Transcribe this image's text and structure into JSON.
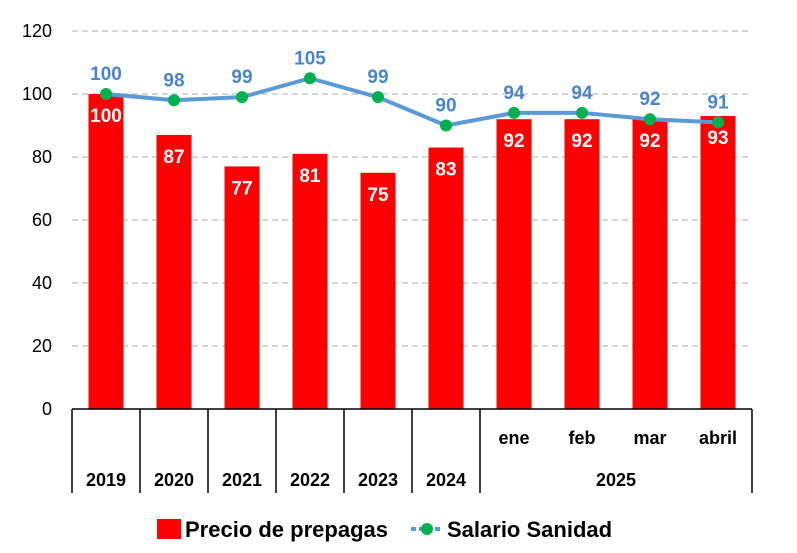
{
  "chart_data": {
    "type": "bar",
    "categories": [
      "2019",
      "2020",
      "2021",
      "2022",
      "2023",
      "2024",
      "ene",
      "feb",
      "mar",
      "abril"
    ],
    "group_labels": [
      "2019",
      "2020",
      "2021",
      "2022",
      "2023",
      "2024",
      "2025"
    ],
    "yticks": [
      "0",
      "20",
      "40",
      "60",
      "80",
      "100",
      "120"
    ],
    "ylim": [
      0,
      120
    ],
    "grid": true,
    "legend_position": "bottom",
    "series": [
      {
        "name": "Precio de prepagas",
        "type": "bar",
        "color": "#ff0000",
        "values": [
          100,
          87,
          77,
          81,
          75,
          83,
          92,
          92,
          92,
          93
        ],
        "labels": [
          "100",
          "87",
          "77",
          "81",
          "75",
          "83",
          "92",
          "92",
          "92",
          "93"
        ]
      },
      {
        "name": "Salario Sanidad",
        "type": "line",
        "color": "#5b9bd5",
        "marker_color": "#00b050",
        "values": [
          100,
          98,
          99,
          105,
          99,
          90,
          94,
          94,
          92,
          91
        ],
        "labels": [
          "100",
          "98",
          "99",
          "105",
          "99",
          "90",
          "94",
          "94",
          "92",
          "91"
        ]
      }
    ]
  }
}
